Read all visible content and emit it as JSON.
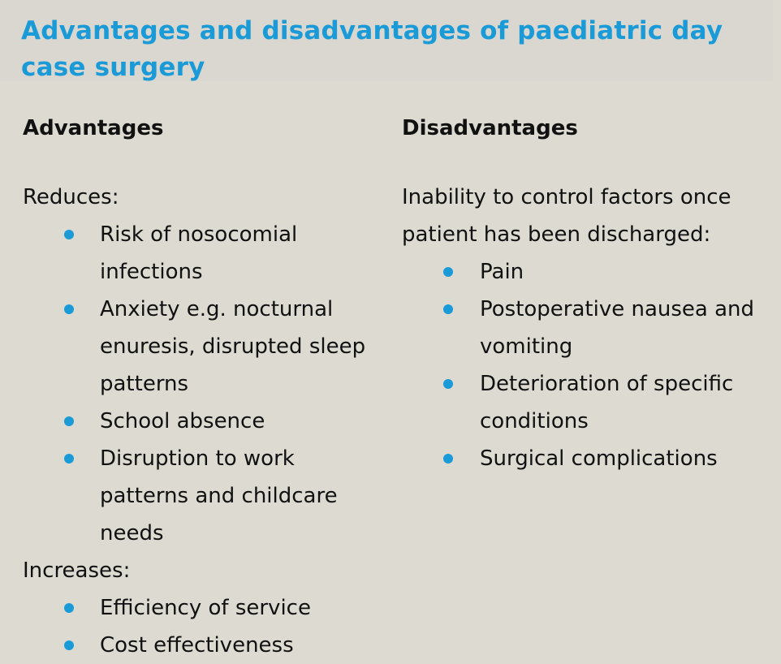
{
  "title": "Advantages and disadvantages of paediatric day case surgery",
  "advantages": {
    "heading": "Advantages",
    "reduces_label": "Reduces:",
    "reduces_items": [
      "Risk of nosocomial infections",
      "Anxiety e.g. nocturnal enuresis, disrupted sleep patterns",
      "School absence",
      "Disruption to work patterns and childcare needs"
    ],
    "increases_label": "Increases:",
    "increases_items": [
      "Efficiency of service",
      "Cost effectiveness"
    ]
  },
  "disadvantages": {
    "heading": "Disadvantages",
    "intro": "Inability to control factors once patient has been discharged:",
    "items": [
      "Pain",
      "Postoperative nausea and vomiting",
      "Deterioration of specific conditions",
      "Surgical complications"
    ]
  },
  "colors": {
    "accent": "#1a9ad6",
    "background": "#dcdad1"
  }
}
